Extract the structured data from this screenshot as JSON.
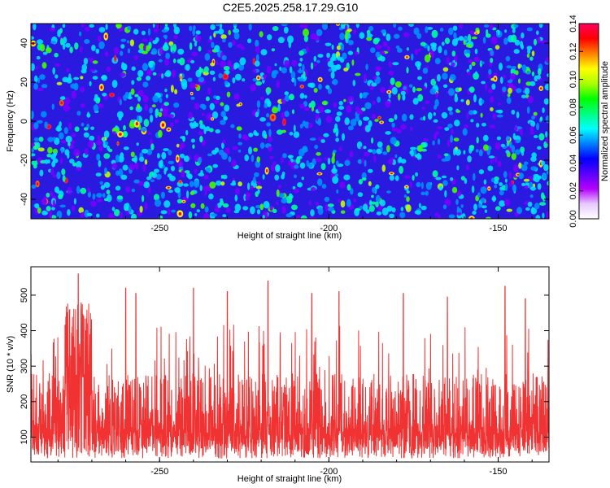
{
  "title": "C2E5.2025.258.17.29.G10",
  "chart_data": [
    {
      "type": "heatmap",
      "name": "spectrogram",
      "xlabel": "Height of straight line (km)",
      "ylabel": "Frequency (Hz)",
      "xlim": [
        -288,
        -135
      ],
      "ylim": [
        -50,
        50
      ],
      "xticks": [
        -250,
        -200,
        -150
      ],
      "yticks": [
        -40,
        -20,
        0,
        20,
        40
      ],
      "colorbar": {
        "label": "Normalized spectral amplitude",
        "range": [
          0,
          0.14
        ],
        "ticks": [
          "0.00",
          "0.02",
          "0.04",
          "0.06",
          "0.08",
          "0.10",
          "0.12",
          "0.14"
        ],
        "colors": [
          "#ffffff",
          "#e6c8ff",
          "#b400ff",
          "#5a00ff",
          "#0000ff",
          "#0080ff",
          "#00ffff",
          "#00ff80",
          "#00ff00",
          "#aaff00",
          "#ffff00",
          "#ff8000",
          "#ff0000",
          "#ff0060"
        ]
      }
    },
    {
      "type": "line",
      "name": "snr",
      "xlabel": "Height of straight line (km)",
      "ylabel": "SNR (10 * v/v)",
      "xlim": [
        -288,
        -135
      ],
      "ylim": [
        30,
        580
      ],
      "xticks": [
        -250,
        -200,
        -150
      ],
      "yticks": [
        100,
        200,
        300,
        400,
        500
      ],
      "color": "#f03232",
      "baseline_range": [
        60,
        280
      ],
      "peaks": [
        {
          "x": -274,
          "y": 560
        },
        {
          "x": -260,
          "y": 520
        },
        {
          "x": -257,
          "y": 505
        },
        {
          "x": -240,
          "y": 520
        },
        {
          "x": -230,
          "y": 510
        },
        {
          "x": -218,
          "y": 540
        },
        {
          "x": -205,
          "y": 505
        },
        {
          "x": -197,
          "y": 510
        },
        {
          "x": -178,
          "y": 505
        },
        {
          "x": -165,
          "y": 495
        },
        {
          "x": -148,
          "y": 525
        },
        {
          "x": -142,
          "y": 490
        }
      ]
    }
  ]
}
